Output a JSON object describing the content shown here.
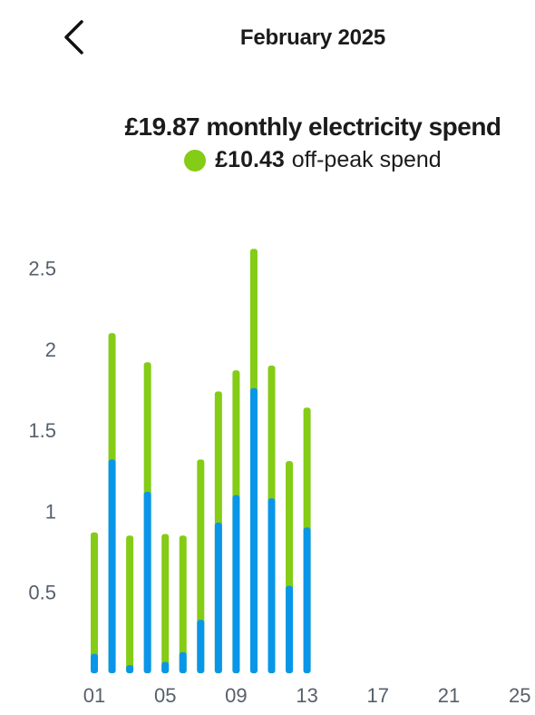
{
  "header": {
    "title": "February 2025",
    "back_icon": "chevron-left-icon"
  },
  "summary": {
    "monthly_amount": "£19.87",
    "monthly_label": "monthly electricity spend",
    "offpeak_amount": "£10.43",
    "offpeak_label": "off-peak spend"
  },
  "colors": {
    "offpeak": "#84cc16",
    "peak": "#0a96e8",
    "axis_text": "#56606b"
  },
  "chart_data": {
    "type": "bar",
    "stacked": true,
    "x": [
      "01",
      "02",
      "03",
      "04",
      "05",
      "06",
      "07",
      "08",
      "09",
      "10",
      "11",
      "12",
      "13"
    ],
    "series": [
      {
        "values": [
          0.12,
          1.32,
          0.05,
          1.12,
          0.07,
          0.13,
          0.33,
          0.93,
          1.1,
          1.76,
          1.08,
          0.54,
          0.9
        ]
      },
      {
        "values": [
          0.75,
          0.78,
          0.8,
          0.8,
          0.79,
          0.72,
          0.99,
          0.81,
          0.77,
          0.86,
          0.82,
          0.77,
          0.74
        ]
      }
    ],
    "x_ticks": [
      "01",
      "05",
      "09",
      "13",
      "17",
      "21",
      "25"
    ],
    "y_ticks": [
      "0.5",
      "1",
      "1.5",
      "2",
      "2.5"
    ],
    "ylim": [
      0,
      2.7
    ],
    "days_in_month": 28
  }
}
